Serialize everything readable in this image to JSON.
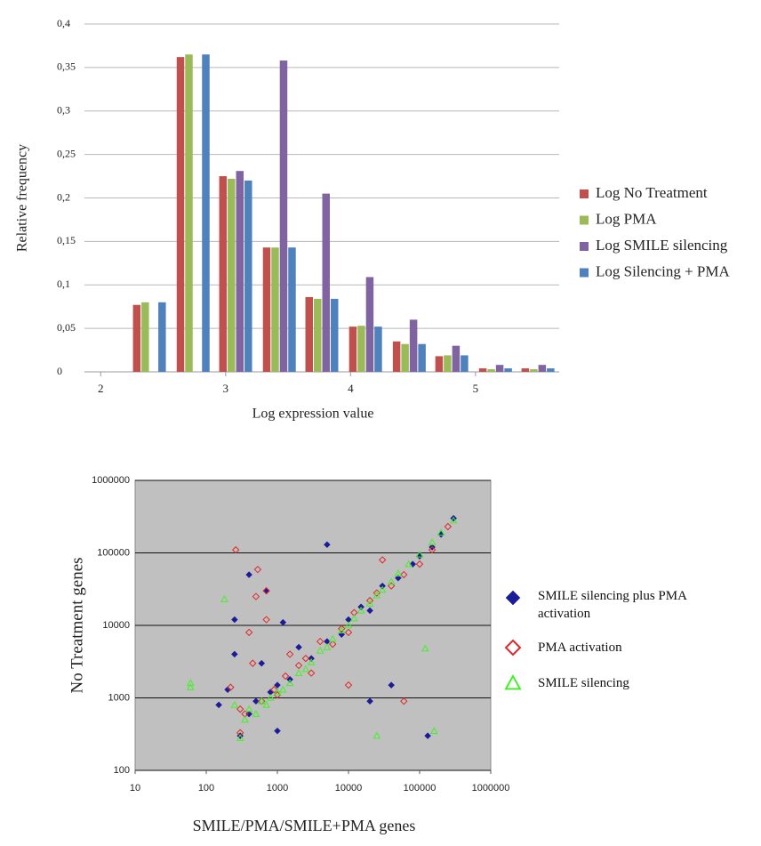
{
  "chart_data": [
    {
      "type": "bar",
      "x_label": "Log expression value",
      "y_label": "Relative frequency",
      "x": [
        2.39,
        2.74,
        3.08,
        3.43,
        3.77,
        4.12,
        4.47,
        4.81,
        5.16,
        5.5
      ],
      "xlim": [
        1.87,
        5.67
      ],
      "xticks": [
        2,
        3,
        4,
        5
      ],
      "ylim": [
        0,
        0.4
      ],
      "yticks": [
        0,
        {
          "value": 0.05,
          "label": "0,05"
        },
        {
          "value": 0.1,
          "label": "0,1"
        },
        {
          "value": 0.15,
          "label": "0,15"
        },
        {
          "value": 0.2,
          "label": "0,2"
        },
        {
          "value": 0.25,
          "label": "0,25"
        },
        {
          "value": 0.3,
          "label": "0,3"
        },
        {
          "value": 0.35,
          "label": "0,35"
        },
        {
          "value": 0.4,
          "label": "0,4"
        }
      ],
      "grid": true,
      "legend": "right",
      "series": [
        {
          "name": "Log No Treatment",
          "color": "#c0504d",
          "values": [
            0.077,
            0.362,
            0.225,
            0.143,
            0.086,
            0.052,
            0.035,
            0.018,
            0.004,
            0.004
          ]
        },
        {
          "name": "Log PMA",
          "color": "#9bbb59",
          "values": [
            0.08,
            0.365,
            0.222,
            0.143,
            0.084,
            0.053,
            0.032,
            0.019,
            0.003,
            0.003
          ]
        },
        {
          "name": "Log SMILE silencing",
          "color": "#8064a2",
          "values": [
            null,
            null,
            0.231,
            0.358,
            0.205,
            0.109,
            0.06,
            0.03,
            0.008,
            0.008
          ]
        },
        {
          "name": "Log Silencing + PMA",
          "color": "#4f81bd",
          "values": [
            0.08,
            0.365,
            0.22,
            0.143,
            0.084,
            0.052,
            0.032,
            0.019,
            0.004,
            0.004
          ]
        }
      ]
    },
    {
      "type": "scatter",
      "x_label": "SMILE/PMA/SMILE+PMA genes",
      "y_label": "No Treatment genes",
      "xscale": "log",
      "yscale": "log",
      "xlim": [
        10,
        1000000
      ],
      "xticks": [
        10,
        100,
        1000,
        10000,
        100000,
        1000000
      ],
      "ylim": [
        100,
        1000000
      ],
      "yticks": [
        100,
        1000,
        10000,
        100000,
        1000000
      ],
      "grid": true,
      "legend": "right",
      "series": [
        {
          "name": "SMILE silencing plus PMA activation",
          "color": "#1c1c9a",
          "marker": "diamond",
          "filled": true,
          "x": [
            150,
            200,
            250,
            300,
            400,
            500,
            600,
            800,
            1000,
            1500,
            2000,
            3000,
            5000,
            8000,
            10000,
            15000,
            20000,
            30000,
            50000,
            80000,
            100000,
            150000,
            200000,
            300000,
            250,
            400,
            700,
            5000,
            20000,
            40000,
            130000,
            1000,
            1200
          ],
          "y": [
            800,
            1300,
            4000,
            300,
            600,
            900,
            3000,
            1200,
            1500,
            1800,
            5000,
            3500,
            6000,
            7500,
            12000,
            18000,
            16000,
            35000,
            45000,
            70000,
            90000,
            120000,
            180000,
            300000,
            12000,
            50000,
            30000,
            130000,
            900,
            1500,
            300,
            350,
            11000
          ]
        },
        {
          "name": "PMA activation",
          "color": "#e0282a",
          "marker": "diamond",
          "filled": false,
          "x": [
            260,
            530,
            220,
            300,
            350,
            450,
            600,
            700,
            900,
            1000,
            1300,
            2000,
            2500,
            3000,
            4000,
            6000,
            8000,
            10000,
            12000,
            20000,
            25000,
            40000,
            60000,
            100000,
            150000,
            250000,
            500,
            400,
            1500,
            10000,
            30000,
            60000,
            300,
            700
          ],
          "y": [
            110000,
            59000,
            1400,
            330,
            600,
            3000,
            900,
            12000,
            1300,
            1100,
            2000,
            2800,
            3500,
            2200,
            6000,
            5500,
            9000,
            8000,
            15000,
            22000,
            28000,
            35000,
            50000,
            70000,
            110000,
            230000,
            25000,
            8000,
            4000,
            1500,
            80000,
            900,
            700,
            30000
          ]
        },
        {
          "name": "SMILE silencing",
          "color": "#44f02a",
          "marker": "triangle",
          "filled": false,
          "x": [
            60,
            60,
            180,
            250,
            300,
            350,
            400,
            500,
            600,
            700,
            800,
            1000,
            1200,
            1500,
            2000,
            2500,
            3000,
            4000,
            5000,
            6000,
            8000,
            10000,
            12000,
            15000,
            20000,
            25000,
            30000,
            40000,
            50000,
            70000,
            100000,
            150000,
            200000,
            300000,
            120000,
            25000,
            160000
          ],
          "y": [
            1600,
            1400,
            23000,
            800,
            280,
            500,
            700,
            600,
            900,
            800,
            1000,
            1200,
            1300,
            1600,
            2200,
            2500,
            3100,
            4500,
            5000,
            6500,
            8500,
            10000,
            12500,
            16000,
            20000,
            26000,
            31000,
            40000,
            52000,
            70000,
            95000,
            140000,
            190000,
            280000,
            4800,
            300,
            350
          ]
        }
      ]
    }
  ]
}
